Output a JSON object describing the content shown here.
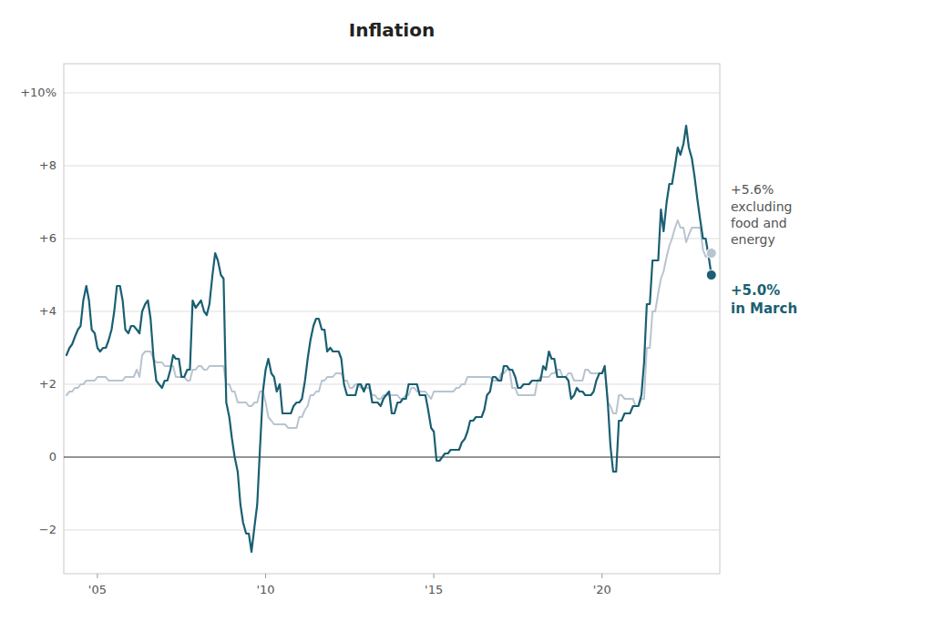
{
  "chart_data": {
    "type": "line",
    "title": "Inflation",
    "x": [
      2004.08,
      2004.17,
      2004.25,
      2004.33,
      2004.42,
      2004.5,
      2004.58,
      2004.67,
      2004.75,
      2004.83,
      2004.92,
      2005.0,
      2005.08,
      2005.17,
      2005.25,
      2005.33,
      2005.42,
      2005.5,
      2005.58,
      2005.67,
      2005.75,
      2005.83,
      2005.92,
      2006.0,
      2006.08,
      2006.17,
      2006.25,
      2006.33,
      2006.42,
      2006.5,
      2006.58,
      2006.67,
      2006.75,
      2006.83,
      2006.92,
      2007.0,
      2007.08,
      2007.17,
      2007.25,
      2007.33,
      2007.42,
      2007.5,
      2007.58,
      2007.67,
      2007.75,
      2007.83,
      2007.92,
      2008.0,
      2008.08,
      2008.17,
      2008.25,
      2008.33,
      2008.42,
      2008.5,
      2008.58,
      2008.67,
      2008.75,
      2008.83,
      2008.92,
      2009.0,
      2009.08,
      2009.17,
      2009.25,
      2009.33,
      2009.42,
      2009.5,
      2009.58,
      2009.67,
      2009.75,
      2009.83,
      2009.92,
      2010.0,
      2010.08,
      2010.17,
      2010.25,
      2010.33,
      2010.42,
      2010.5,
      2010.58,
      2010.67,
      2010.75,
      2010.83,
      2010.92,
      2011.0,
      2011.08,
      2011.17,
      2011.25,
      2011.33,
      2011.42,
      2011.5,
      2011.58,
      2011.67,
      2011.75,
      2011.83,
      2011.92,
      2012.0,
      2012.08,
      2012.17,
      2012.25,
      2012.33,
      2012.42,
      2012.5,
      2012.58,
      2012.67,
      2012.75,
      2012.83,
      2012.92,
      2013.0,
      2013.08,
      2013.17,
      2013.25,
      2013.33,
      2013.42,
      2013.5,
      2013.58,
      2013.67,
      2013.75,
      2013.83,
      2013.92,
      2014.0,
      2014.08,
      2014.17,
      2014.25,
      2014.33,
      2014.42,
      2014.5,
      2014.58,
      2014.67,
      2014.75,
      2014.83,
      2014.92,
      2015.0,
      2015.08,
      2015.17,
      2015.25,
      2015.33,
      2015.42,
      2015.5,
      2015.58,
      2015.67,
      2015.75,
      2015.83,
      2015.92,
      2016.0,
      2016.08,
      2016.17,
      2016.25,
      2016.33,
      2016.42,
      2016.5,
      2016.58,
      2016.67,
      2016.75,
      2016.83,
      2016.92,
      2017.0,
      2017.08,
      2017.17,
      2017.25,
      2017.33,
      2017.42,
      2017.5,
      2017.58,
      2017.67,
      2017.75,
      2017.83,
      2017.92,
      2018.0,
      2018.08,
      2018.17,
      2018.25,
      2018.33,
      2018.42,
      2018.5,
      2018.58,
      2018.67,
      2018.75,
      2018.83,
      2018.92,
      2019.0,
      2019.08,
      2019.17,
      2019.25,
      2019.33,
      2019.42,
      2019.5,
      2019.58,
      2019.67,
      2019.75,
      2019.83,
      2019.92,
      2020.0,
      2020.08,
      2020.17,
      2020.25,
      2020.33,
      2020.42,
      2020.5,
      2020.58,
      2020.67,
      2020.75,
      2020.83,
      2020.92,
      2021.0,
      2021.08,
      2021.17,
      2021.25,
      2021.33,
      2021.42,
      2021.5,
      2021.58,
      2021.67,
      2021.75,
      2021.83,
      2021.92,
      2022.0,
      2022.08,
      2022.17,
      2022.25,
      2022.33,
      2022.42,
      2022.5,
      2022.58,
      2022.67,
      2022.75,
      2022.83,
      2022.92,
      2023.0,
      2023.08,
      2023.17,
      2023.25
    ],
    "series": [
      {
        "color": "#b8c4d0",
        "values": [
          1.7,
          1.8,
          1.8,
          1.9,
          1.9,
          2.0,
          2.0,
          2.1,
          2.1,
          2.1,
          2.1,
          2.2,
          2.2,
          2.2,
          2.2,
          2.1,
          2.1,
          2.1,
          2.1,
          2.1,
          2.1,
          2.2,
          2.2,
          2.2,
          2.2,
          2.4,
          2.2,
          2.8,
          2.9,
          2.9,
          2.9,
          2.7,
          2.6,
          2.6,
          2.6,
          2.5,
          2.5,
          2.5,
          2.5,
          2.2,
          2.2,
          2.2,
          2.2,
          2.1,
          2.1,
          2.4,
          2.4,
          2.5,
          2.5,
          2.4,
          2.4,
          2.5,
          2.5,
          2.5,
          2.5,
          2.5,
          2.5,
          2.0,
          2.0,
          1.8,
          1.8,
          1.5,
          1.5,
          1.5,
          1.5,
          1.4,
          1.4,
          1.5,
          1.5,
          1.8,
          1.8,
          1.5,
          1.1,
          1.0,
          0.9,
          0.9,
          0.9,
          0.9,
          0.9,
          0.8,
          0.8,
          0.8,
          0.8,
          1.1,
          1.1,
          1.3,
          1.4,
          1.7,
          1.7,
          1.8,
          1.8,
          2.1,
          2.1,
          2.2,
          2.2,
          2.2,
          2.3,
          2.3,
          2.3,
          2.1,
          2.1,
          1.9,
          1.9,
          2.0,
          2.0,
          1.9,
          1.9,
          1.9,
          1.9,
          1.7,
          1.7,
          1.6,
          1.6,
          1.7,
          1.7,
          1.7,
          1.7,
          1.7,
          1.7,
          1.6,
          1.6,
          1.7,
          1.7,
          1.9,
          1.9,
          1.8,
          1.8,
          1.8,
          1.8,
          1.7,
          1.6,
          1.8,
          1.8,
          1.8,
          1.8,
          1.8,
          1.8,
          1.8,
          1.8,
          1.9,
          1.9,
          2.0,
          2.0,
          2.2,
          2.2,
          2.2,
          2.2,
          2.2,
          2.2,
          2.2,
          2.2,
          2.2,
          2.1,
          2.1,
          2.1,
          2.3,
          2.3,
          2.4,
          2.4,
          1.9,
          1.9,
          1.7,
          1.7,
          1.7,
          1.7,
          1.7,
          1.7,
          1.7,
          2.1,
          2.2,
          2.2,
          2.2,
          2.2,
          2.3,
          2.3,
          2.4,
          2.4,
          2.2,
          2.2,
          2.3,
          2.3,
          2.1,
          2.1,
          2.1,
          2.1,
          2.4,
          2.4,
          2.3,
          2.3,
          2.3,
          2.3,
          2.3,
          2.4,
          1.5,
          1.4,
          1.2,
          1.2,
          1.7,
          1.7,
          1.6,
          1.6,
          1.6,
          1.6,
          1.4,
          1.4,
          1.6,
          1.6,
          3.0,
          3.0,
          4.0,
          4.0,
          4.5,
          4.9,
          5.1,
          5.5,
          5.8,
          6.0,
          6.3,
          6.5,
          6.3,
          6.3,
          5.9,
          6.1,
          6.3,
          6.3,
          6.3,
          6.3,
          5.7,
          5.5,
          5.6,
          5.6
        ]
      },
      {
        "color": "#1a5f72",
        "values": [
          2.8,
          3.0,
          3.1,
          3.3,
          3.5,
          3.6,
          4.3,
          4.7,
          4.3,
          3.5,
          3.4,
          3.0,
          2.9,
          3.0,
          3.0,
          3.2,
          3.5,
          4.0,
          4.7,
          4.7,
          4.3,
          3.5,
          3.4,
          3.6,
          3.6,
          3.5,
          3.4,
          4.0,
          4.2,
          4.3,
          3.8,
          2.7,
          2.1,
          2.0,
          1.9,
          2.1,
          2.1,
          2.4,
          2.8,
          2.7,
          2.7,
          2.2,
          2.2,
          2.4,
          2.4,
          4.3,
          4.1,
          4.2,
          4.3,
          4.0,
          3.9,
          4.2,
          5.0,
          5.6,
          5.4,
          5.0,
          4.9,
          1.5,
          1.1,
          0.5,
          0.0,
          -0.4,
          -1.3,
          -1.8,
          -2.1,
          -2.1,
          -2.6,
          -1.9,
          -1.3,
          0.2,
          1.8,
          2.4,
          2.7,
          2.3,
          2.2,
          1.8,
          2.0,
          1.2,
          1.2,
          1.2,
          1.2,
          1.4,
          1.5,
          1.5,
          1.6,
          2.1,
          2.7,
          3.2,
          3.6,
          3.8,
          3.8,
          3.5,
          3.5,
          2.9,
          3.0,
          2.9,
          2.9,
          2.9,
          2.7,
          2.0,
          1.7,
          1.7,
          1.7,
          1.7,
          2.0,
          2.0,
          1.8,
          2.0,
          2.0,
          1.5,
          1.5,
          1.5,
          1.4,
          1.6,
          1.7,
          1.8,
          1.2,
          1.2,
          1.5,
          1.5,
          1.6,
          1.6,
          2.0,
          2.0,
          2.0,
          2.0,
          1.7,
          1.7,
          1.7,
          1.3,
          0.8,
          0.7,
          -0.1,
          -0.1,
          0.0,
          0.1,
          0.1,
          0.2,
          0.2,
          0.2,
          0.2,
          0.4,
          0.5,
          0.7,
          1.0,
          1.0,
          1.1,
          1.1,
          1.1,
          1.3,
          1.7,
          1.8,
          2.2,
          2.2,
          2.1,
          2.1,
          2.5,
          2.5,
          2.4,
          2.4,
          2.2,
          1.9,
          1.9,
          2.0,
          2.0,
          2.0,
          2.1,
          2.1,
          2.1,
          2.1,
          2.5,
          2.4,
          2.9,
          2.7,
          2.7,
          2.2,
          2.2,
          2.2,
          2.2,
          2.1,
          1.6,
          1.7,
          1.9,
          1.8,
          1.8,
          1.7,
          1.7,
          1.7,
          1.8,
          2.1,
          2.3,
          2.3,
          2.5,
          1.5,
          0.3,
          -0.4,
          -0.4,
          1.0,
          1.0,
          1.2,
          1.2,
          1.2,
          1.4,
          1.4,
          1.4,
          1.7,
          2.6,
          4.2,
          4.2,
          5.4,
          5.4,
          5.4,
          6.8,
          6.2,
          7.0,
          7.5,
          7.5,
          8.0,
          8.5,
          8.3,
          8.6,
          9.1,
          8.5,
          8.2,
          7.7,
          7.1,
          6.5,
          6.0,
          6.0,
          5.5,
          5.0
        ]
      }
    ],
    "xlim": [
      2004.0,
      2023.5
    ],
    "xticks": [
      {
        "value": 2005.0,
        "label": "'05"
      },
      {
        "value": 2010.0,
        "label": "'10"
      },
      {
        "value": 2015.0,
        "label": "'15"
      },
      {
        "value": 2020.0,
        "label": "'20"
      }
    ],
    "ylim": [
      -3.2,
      10.8
    ],
    "yticks": [
      {
        "value": -2,
        "label": "−2"
      },
      0,
      {
        "value": 2,
        "label": "+2"
      },
      {
        "value": 4,
        "label": "+4"
      },
      {
        "value": 6,
        "label": "+6"
      },
      {
        "value": 8,
        "label": "+8"
      },
      {
        "value": 10,
        "label": "+10%"
      }
    ],
    "grid": true,
    "annotations": [
      "+5.6%\nexcluding\nfood and\nenergy",
      "+5.0%\nin March"
    ]
  }
}
